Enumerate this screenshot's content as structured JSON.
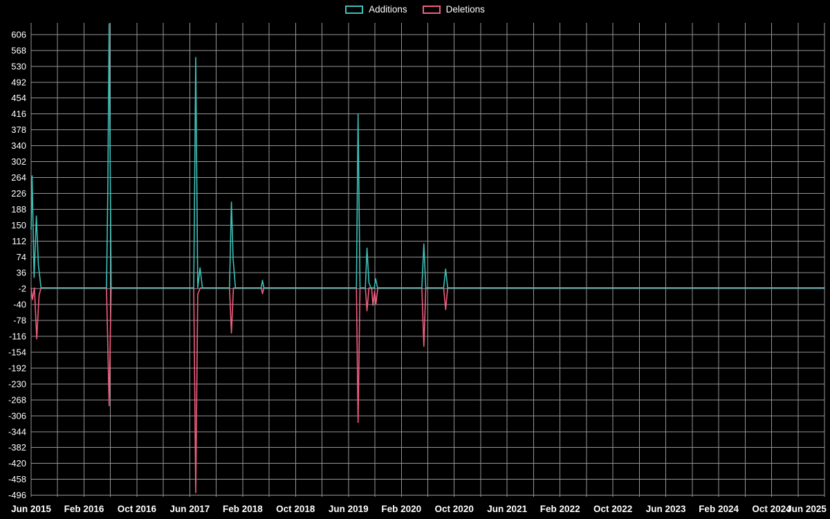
{
  "chart_data": {
    "type": "line",
    "title": "",
    "background_color": "#000000",
    "grid_color": "#969696",
    "text_color": "#ffffff",
    "legend_position": "top-center",
    "x_axis": {
      "labels": [
        "Jun 2015",
        "Feb 2016",
        "Oct 2016",
        "Jun 2017",
        "Feb 2018",
        "Oct 2018",
        "Jun 2019",
        "Feb 2020",
        "Oct 2020",
        "Jun 2021",
        "Feb 2022",
        "Oct 2022",
        "Jun 2023",
        "Feb 2024",
        "Oct 2024",
        "Jun 2025"
      ],
      "label_step_months": 8,
      "grid_step_months": 4,
      "range_months": [
        0,
        120
      ]
    },
    "y_axis": {
      "ticks": [
        606,
        568,
        530,
        492,
        454,
        416,
        378,
        340,
        302,
        264,
        226,
        188,
        150,
        112,
        74,
        36,
        -2,
        -40,
        -78,
        -116,
        -154,
        -192,
        -230,
        -268,
        -306,
        -344,
        -382,
        -420,
        -458,
        -496
      ],
      "tick_step": 38,
      "range": [
        -500,
        634
      ]
    },
    "series": [
      {
        "name": "Additions",
        "color": "#3fc1b9",
        "points": [
          [
            0,
            140
          ],
          [
            0.15,
            268
          ],
          [
            0.45,
            25
          ],
          [
            0.8,
            172
          ],
          [
            1.1,
            55
          ],
          [
            1.5,
            0
          ],
          [
            11.4,
            0
          ],
          [
            11.6,
            238
          ],
          [
            11.8,
            632
          ],
          [
            12.1,
            0
          ],
          [
            24.6,
            0
          ],
          [
            24.9,
            551
          ],
          [
            25.2,
            0
          ],
          [
            25.55,
            48
          ],
          [
            25.9,
            0
          ],
          [
            30.0,
            0
          ],
          [
            30.3,
            205
          ],
          [
            30.55,
            70
          ],
          [
            30.9,
            0
          ],
          [
            34.8,
            0
          ],
          [
            35.0,
            18
          ],
          [
            35.2,
            0
          ],
          [
            49.2,
            0
          ],
          [
            49.45,
            415
          ],
          [
            49.75,
            0
          ],
          [
            50.55,
            0
          ],
          [
            50.8,
            95
          ],
          [
            51.1,
            12
          ],
          [
            51.4,
            0
          ],
          [
            51.9,
            0
          ],
          [
            52.1,
            22
          ],
          [
            52.4,
            0
          ],
          [
            59.1,
            0
          ],
          [
            59.4,
            105
          ],
          [
            59.7,
            0
          ],
          [
            62.4,
            0
          ],
          [
            62.7,
            45
          ],
          [
            63.0,
            0
          ],
          [
            120,
            0
          ]
        ]
      },
      {
        "name": "Deletions",
        "color": "#f25f80",
        "points": [
          [
            0,
            0
          ],
          [
            0.2,
            -28
          ],
          [
            0.5,
            0
          ],
          [
            0.85,
            -122
          ],
          [
            1.2,
            -18
          ],
          [
            1.5,
            0
          ],
          [
            11.4,
            0
          ],
          [
            11.8,
            -282
          ],
          [
            12.1,
            0
          ],
          [
            24.6,
            0
          ],
          [
            24.9,
            -490
          ],
          [
            25.2,
            -15
          ],
          [
            25.6,
            0
          ],
          [
            30.0,
            0
          ],
          [
            30.3,
            -108
          ],
          [
            30.6,
            0
          ],
          [
            34.8,
            0
          ],
          [
            35.0,
            -14
          ],
          [
            35.2,
            0
          ],
          [
            49.2,
            0
          ],
          [
            49.45,
            -322
          ],
          [
            49.75,
            0
          ],
          [
            50.55,
            0
          ],
          [
            50.8,
            -55
          ],
          [
            51.1,
            0
          ],
          [
            51.5,
            0
          ],
          [
            51.7,
            -42
          ],
          [
            51.95,
            -8
          ],
          [
            52.15,
            -38
          ],
          [
            52.45,
            0
          ],
          [
            59.1,
            0
          ],
          [
            59.4,
            -140
          ],
          [
            59.7,
            0
          ],
          [
            62.4,
            0
          ],
          [
            62.7,
            -52
          ],
          [
            63.0,
            0
          ],
          [
            120,
            0
          ]
        ]
      }
    ]
  }
}
